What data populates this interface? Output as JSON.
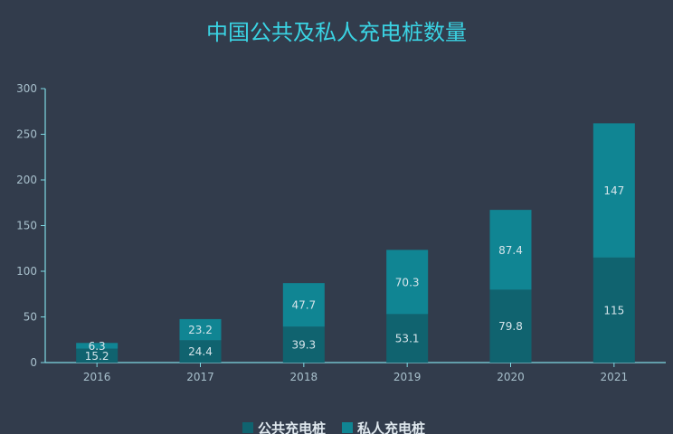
{
  "chart_data": {
    "type": "bar",
    "stacked": true,
    "title": "中国公共及私人充电桩数量",
    "categories": [
      "2016",
      "2017",
      "2018",
      "2019",
      "2020",
      "2021"
    ],
    "series": [
      {
        "name": "公共充电桩",
        "values": [
          15.2,
          24.4,
          39.3,
          53.1,
          79.8,
          115
        ],
        "labels": [
          "15.2",
          "24.4",
          "39.3",
          "53.1",
          "79.8",
          "115"
        ],
        "color": "#10636f"
      },
      {
        "name": "私人充电桩",
        "values": [
          6.3,
          23.2,
          47.7,
          70.3,
          87.4,
          147
        ],
        "labels": [
          "6.3",
          "23.2",
          "47.7",
          "70.3",
          "87.4",
          "147"
        ],
        "color": "#108593"
      }
    ],
    "yticks": [
      "0",
      "50",
      "100",
      "150",
      "200",
      "250",
      "300"
    ],
    "ylim": [
      0,
      300
    ],
    "xlabel": "",
    "ylabel": "",
    "grid": false,
    "legend_position": "bottom-center"
  }
}
